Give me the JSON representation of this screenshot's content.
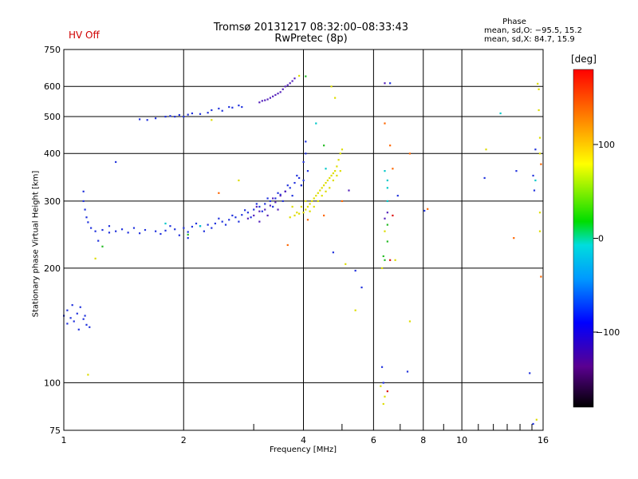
{
  "header": {
    "hv_status": "HV Off",
    "title_line1": "Tromsø 20131217 08:32:00–08:33:43",
    "title_line2": "RwPretec (8p)",
    "phase_heading": "Phase",
    "phase_o": "mean, sd,O: −95.5, 15.2",
    "phase_x": "mean, sd,X: 84.7, 15.9"
  },
  "colorbar": {
    "unit": "[deg]",
    "range": [
      -180,
      180
    ],
    "ticks": [
      {
        "value": 100,
        "label": "100"
      },
      {
        "value": 0,
        "label": "0"
      },
      {
        "value": -100,
        "label": "−100"
      }
    ]
  },
  "chart_data": {
    "type": "scatter",
    "title": "Tromsø 20131217 08:32:00–08:33:43",
    "subtitle": "RwPretec (8p)",
    "xlabel": "Frequency [MHz]",
    "ylabel": "Stationary phase Virtual Height [km]",
    "x_scale": "log",
    "y_scale": "log",
    "xlim": [
      1,
      16
    ],
    "ylim": [
      75,
      750
    ],
    "x_ticks": [
      {
        "value": 1,
        "label": "1"
      },
      {
        "value": 2,
        "label": "2"
      },
      {
        "value": 4,
        "label": "4"
      },
      {
        "value": 6,
        "label": "6"
      },
      {
        "value": 8,
        "label": "8"
      },
      {
        "value": 10,
        "label": "10"
      },
      {
        "value": 16,
        "label": "16"
      }
    ],
    "x_minor_grid": [
      3,
      5,
      7,
      9,
      11,
      12,
      13,
      14,
      15
    ],
    "y_ticks": [
      {
        "value": 75,
        "label": "75"
      },
      {
        "value": 100,
        "label": "100"
      },
      {
        "value": 200,
        "label": "200"
      },
      {
        "value": 300,
        "label": "300"
      },
      {
        "value": 400,
        "label": "400"
      },
      {
        "value": 500,
        "label": "500"
      },
      {
        "value": 600,
        "label": "600"
      },
      {
        "value": 750,
        "label": "750"
      }
    ],
    "grid": true,
    "series": [
      {
        "color": "#2233dd",
        "points": [
          [
            1.0,
            150
          ],
          [
            1.02,
            155
          ],
          [
            1.04,
            148
          ],
          [
            1.06,
            145
          ],
          [
            1.08,
            152
          ],
          [
            1.1,
            158
          ],
          [
            1.12,
            147
          ],
          [
            1.14,
            142
          ],
          [
            1.02,
            143
          ],
          [
            1.05,
            160
          ],
          [
            1.09,
            138
          ],
          [
            1.13,
            150
          ],
          [
            1.16,
            140
          ],
          [
            1.12,
            318
          ],
          [
            1.12,
            300
          ],
          [
            1.13,
            285
          ],
          [
            1.14,
            272
          ],
          [
            1.15,
            264
          ],
          [
            1.17,
            255
          ],
          [
            1.2,
            250
          ],
          [
            1.25,
            252
          ],
          [
            1.3,
            258
          ],
          [
            1.35,
            250
          ],
          [
            1.4,
            253
          ],
          [
            1.5,
            255
          ],
          [
            1.6,
            252
          ],
          [
            1.7,
            250
          ],
          [
            1.8,
            251
          ],
          [
            1.9,
            253
          ],
          [
            2.0,
            255
          ],
          [
            2.1,
            257
          ],
          [
            2.2,
            258
          ],
          [
            2.3,
            260
          ],
          [
            2.4,
            262
          ],
          [
            2.5,
            265
          ],
          [
            2.6,
            268
          ],
          [
            2.7,
            272
          ],
          [
            2.8,
            276
          ],
          [
            2.9,
            280
          ],
          [
            3.0,
            285
          ],
          [
            3.1,
            290
          ],
          [
            3.2,
            295
          ],
          [
            3.3,
            300
          ],
          [
            3.4,
            305
          ],
          [
            3.5,
            312
          ],
          [
            3.6,
            318
          ],
          [
            3.7,
            325
          ],
          [
            3.8,
            335
          ],
          [
            3.9,
            345
          ],
          [
            1.3,
            248
          ],
          [
            1.45,
            248
          ],
          [
            1.55,
            247
          ],
          [
            1.75,
            246
          ],
          [
            1.85,
            258
          ],
          [
            2.05,
            249
          ],
          [
            2.15,
            262
          ],
          [
            2.35,
            255
          ],
          [
            2.45,
            270
          ],
          [
            2.55,
            260
          ],
          [
            2.65,
            275
          ],
          [
            2.75,
            265
          ],
          [
            2.85,
            284
          ],
          [
            2.95,
            272
          ],
          [
            3.05,
            295
          ],
          [
            3.15,
            282
          ],
          [
            3.25,
            305
          ],
          [
            3.35,
            290
          ],
          [
            3.45,
            315
          ],
          [
            3.55,
            300
          ],
          [
            3.65,
            330
          ],
          [
            3.75,
            310
          ],
          [
            3.85,
            350
          ],
          [
            3.95,
            330
          ],
          [
            1.22,
            236
          ],
          [
            1.95,
            244
          ],
          [
            2.25,
            250
          ],
          [
            2.05,
            240
          ],
          [
            1.35,
            380
          ],
          [
            1.55,
            492
          ],
          [
            1.62,
            490
          ],
          [
            1.7,
            495
          ],
          [
            1.8,
            500
          ],
          [
            1.85,
            502
          ],
          [
            1.9,
            500
          ],
          [
            1.95,
            505
          ],
          [
            2.0,
            500
          ],
          [
            2.05,
            506
          ],
          [
            2.1,
            510
          ],
          [
            2.2,
            508
          ],
          [
            2.3,
            512
          ],
          [
            2.35,
            520
          ],
          [
            2.45,
            525
          ],
          [
            2.5,
            518
          ],
          [
            2.6,
            530
          ],
          [
            2.65,
            528
          ],
          [
            2.75,
            535
          ],
          [
            2.8,
            530
          ],
          [
            4.05,
            430
          ],
          [
            4.05,
            400
          ],
          [
            4.0,
            380
          ],
          [
            4.1,
            360
          ],
          [
            4.0,
            340
          ],
          [
            3.95,
            330
          ],
          [
            4.75,
            220
          ],
          [
            5.4,
            197
          ],
          [
            5.6,
            178
          ],
          [
            6.3,
            110
          ],
          [
            6.35,
            100
          ],
          [
            6.6,
            612
          ],
          [
            7.3,
            107
          ],
          [
            8.05,
            283
          ],
          [
            11.4,
            345
          ],
          [
            13.7,
            360
          ],
          [
            14.8,
            106
          ],
          [
            15.1,
            78
          ],
          [
            15.2,
            320
          ],
          [
            15.3,
            410
          ],
          [
            15.1,
            350
          ],
          [
            6.9,
            310
          ]
        ]
      },
      {
        "color": "#5522bb",
        "points": [
          [
            2.9,
            270
          ],
          [
            3.0,
            275
          ],
          [
            3.05,
            290
          ],
          [
            3.1,
            282
          ],
          [
            3.2,
            285
          ],
          [
            3.3,
            292
          ],
          [
            3.35,
            305
          ],
          [
            3.4,
            298
          ],
          [
            3.5,
            310
          ],
          [
            3.6,
            318
          ],
          [
            3.1,
            265
          ],
          [
            3.25,
            275
          ],
          [
            3.45,
            285
          ],
          [
            3.1,
            545
          ],
          [
            3.15,
            550
          ],
          [
            3.2,
            552
          ],
          [
            3.3,
            560
          ],
          [
            3.35,
            565
          ],
          [
            3.4,
            570
          ],
          [
            3.5,
            580
          ],
          [
            3.55,
            590
          ],
          [
            3.6,
            600
          ],
          [
            3.65,
            605
          ],
          [
            3.7,
            612
          ],
          [
            3.75,
            620
          ],
          [
            3.8,
            630
          ],
          [
            3.25,
            555
          ],
          [
            3.45,
            575
          ],
          [
            6.4,
            612
          ],
          [
            6.4,
            270
          ],
          [
            6.5,
            280
          ],
          [
            5.2,
            320
          ]
        ]
      },
      {
        "color": "#dddd00",
        "points": [
          [
            3.7,
            272
          ],
          [
            3.8,
            275
          ],
          [
            3.9,
            278
          ],
          [
            4.0,
            280
          ],
          [
            4.05,
            285
          ],
          [
            4.1,
            290
          ],
          [
            4.15,
            295
          ],
          [
            4.2,
            300
          ],
          [
            4.25,
            305
          ],
          [
            4.3,
            310
          ],
          [
            4.35,
            315
          ],
          [
            4.4,
            320
          ],
          [
            4.45,
            325
          ],
          [
            4.5,
            330
          ],
          [
            4.55,
            335
          ],
          [
            4.6,
            340
          ],
          [
            4.65,
            345
          ],
          [
            4.7,
            350
          ],
          [
            4.75,
            355
          ],
          [
            4.8,
            360
          ],
          [
            4.85,
            370
          ],
          [
            4.9,
            385
          ],
          [
            4.95,
            400
          ],
          [
            5.0,
            410
          ],
          [
            3.75,
            290
          ],
          [
            3.85,
            280
          ],
          [
            3.95,
            290
          ],
          [
            4.15,
            282
          ],
          [
            4.35,
            300
          ],
          [
            4.45,
            310
          ],
          [
            4.55,
            318
          ],
          [
            4.65,
            325
          ],
          [
            4.75,
            340
          ],
          [
            4.85,
            350
          ],
          [
            4.95,
            360
          ],
          [
            4.05,
            300
          ],
          [
            4.25,
            290
          ],
          [
            1.2,
            212
          ],
          [
            1.15,
            105
          ],
          [
            2.35,
            490
          ],
          [
            2.75,
            340
          ],
          [
            3.9,
            640
          ],
          [
            4.7,
            600
          ],
          [
            4.8,
            560
          ],
          [
            5.1,
            205
          ],
          [
            5.4,
            155
          ],
          [
            6.25,
            98
          ],
          [
            6.35,
            88
          ],
          [
            6.4,
            92
          ],
          [
            6.3,
            200
          ],
          [
            6.4,
            250
          ],
          [
            7.4,
            145
          ],
          [
            11.5,
            410
          ],
          [
            15.5,
            610
          ],
          [
            15.6,
            590
          ],
          [
            15.6,
            520
          ],
          [
            15.7,
            440
          ],
          [
            15.7,
            400
          ],
          [
            15.7,
            250
          ],
          [
            15.7,
            280
          ],
          [
            15.4,
            80
          ],
          [
            6.8,
            210
          ]
        ]
      },
      {
        "color": "#00c8c8",
        "points": [
          [
            4.3,
            480
          ],
          [
            4.55,
            365
          ],
          [
            6.4,
            360
          ],
          [
            6.5,
            340
          ],
          [
            6.5,
            325
          ],
          [
            6.5,
            300
          ],
          [
            12.5,
            510
          ],
          [
            15.3,
            340
          ],
          [
            1.8,
            262
          ],
          [
            2.2,
            258
          ]
        ]
      },
      {
        "color": "#22bb22",
        "points": [
          [
            4.05,
            638
          ],
          [
            4.5,
            420
          ],
          [
            6.35,
            215
          ],
          [
            6.4,
            210
          ],
          [
            6.5,
            235
          ],
          [
            6.5,
            260
          ],
          [
            1.25,
            228
          ],
          [
            2.05,
            245
          ]
        ]
      },
      {
        "color": "#ff6600",
        "points": [
          [
            3.65,
            230
          ],
          [
            4.1,
            268
          ],
          [
            4.5,
            275
          ],
          [
            5.0,
            300
          ],
          [
            6.4,
            480
          ],
          [
            6.7,
            365
          ],
          [
            6.6,
            420
          ],
          [
            7.4,
            400
          ],
          [
            8.2,
            286
          ],
          [
            2.45,
            315
          ],
          [
            13.5,
            240
          ],
          [
            15.8,
            375
          ],
          [
            15.8,
            190
          ]
        ]
      },
      {
        "color": "#dd1111",
        "points": [
          [
            6.6,
            210
          ],
          [
            6.5,
            95
          ],
          [
            6.7,
            275
          ]
        ]
      }
    ]
  }
}
